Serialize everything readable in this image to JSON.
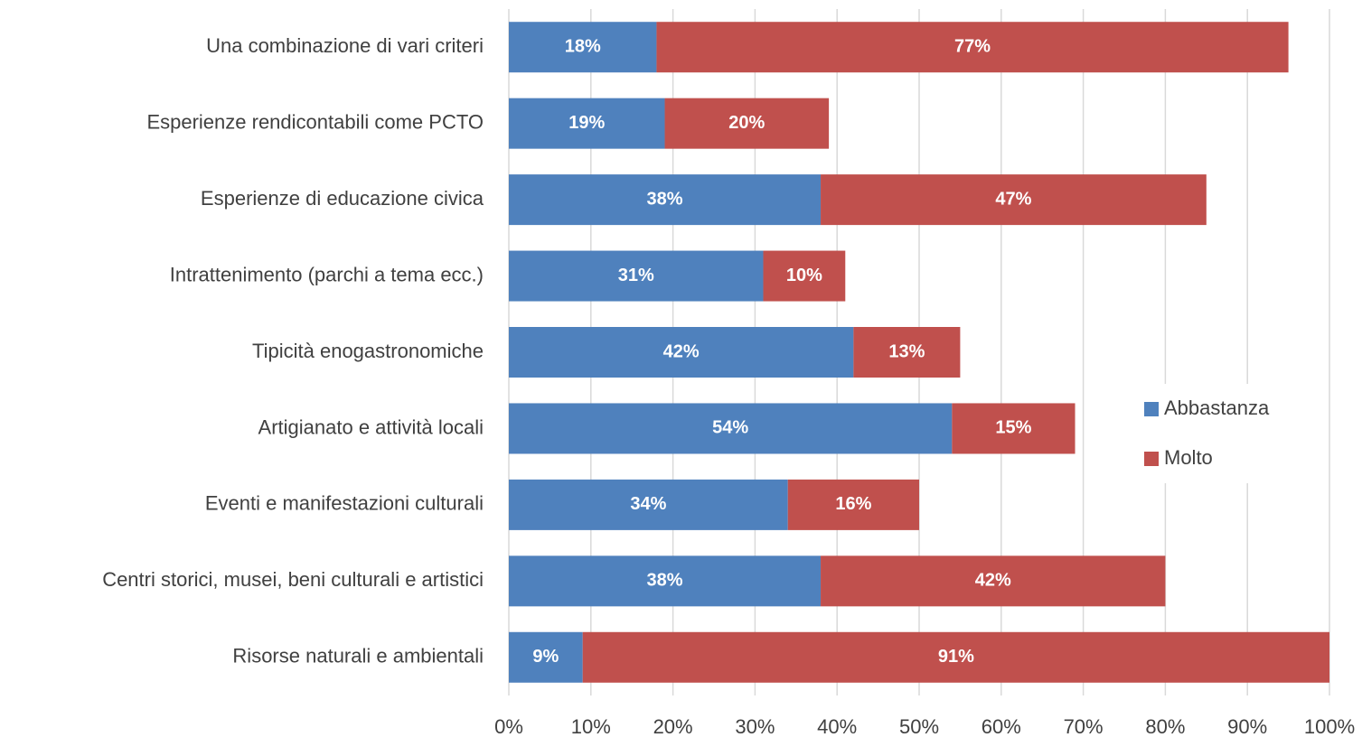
{
  "chart_data": {
    "type": "stacked-barh",
    "categories": [
      "Una combinazione di vari criteri",
      "Esperienze rendicontabili come PCTO",
      "Esperienze di educazione civica",
      "Intrattenimento (parchi a tema ecc.)",
      "Tipicità enogastronomiche",
      "Artigianato e attività locali",
      "Eventi e manifestazioni culturali",
      "Centri storici, musei, beni culturali e artistici",
      "Risorse naturali e ambientali"
    ],
    "series": [
      {
        "name": "Abbastanza",
        "color": "#4f81bd",
        "values": [
          18,
          19,
          38,
          31,
          42,
          54,
          34,
          38,
          9
        ],
        "value_labels": [
          "18%",
          "19%",
          "38%",
          "31%",
          "42%",
          "54%",
          "34%",
          "38%",
          "9%"
        ]
      },
      {
        "name": "Molto",
        "color": "#c0504d",
        "values": [
          77,
          20,
          47,
          10,
          13,
          15,
          16,
          42,
          91
        ],
        "value_labels": [
          "77%",
          "20%",
          "47%",
          "10%",
          "13%",
          "15%",
          "16%",
          "42%",
          "91%"
        ]
      }
    ],
    "xlim": [
      0,
      100
    ],
    "xticks": [
      {
        "value": 0,
        "label": "0%"
      },
      {
        "value": 10,
        "label": "10%"
      },
      {
        "value": 20,
        "label": "20%"
      },
      {
        "value": 30,
        "label": "30%"
      },
      {
        "value": 40,
        "label": "40%"
      },
      {
        "value": 50,
        "label": "50%"
      },
      {
        "value": 60,
        "label": "60%"
      },
      {
        "value": 70,
        "label": "70%"
      },
      {
        "value": 80,
        "label": "80%"
      },
      {
        "value": 90,
        "label": "90%"
      },
      {
        "value": 100,
        "label": "100%"
      }
    ],
    "grid": true,
    "legend": "right"
  }
}
